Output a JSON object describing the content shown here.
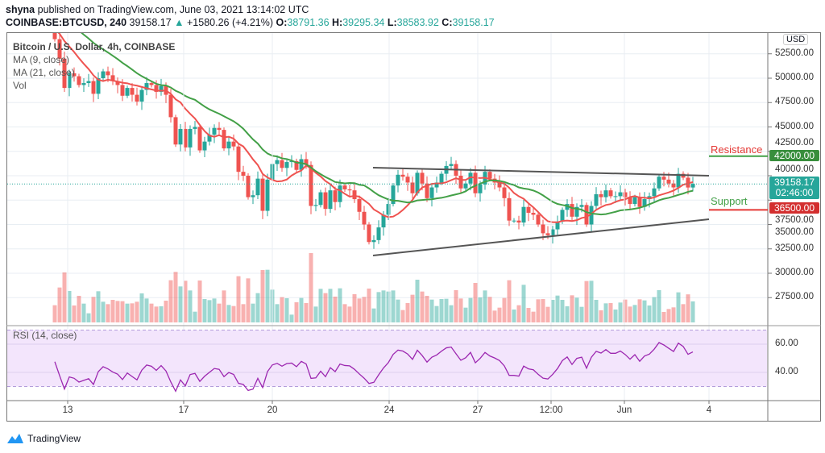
{
  "header": {
    "author": "shyna",
    "published": "published on TradingView.com, June 03, 2021 13:14:02 UTC",
    "symbol": "COINBASE:BTCUSD, 240",
    "last": "39158.17",
    "change": "+1580.26 (+4.21%)",
    "o_label": "O:",
    "o": "38791.36",
    "h_label": "H:",
    "h": "39295.34",
    "l_label": "L:",
    "l": "38583.92",
    "c_label": "C:",
    "c": "39158.17"
  },
  "legend": {
    "title": "Bitcoin / U.S. Dollar, 4h, COINBASE",
    "ma9": "MA (9, close)",
    "ma21": "MA (21, close)",
    "vol": "Vol",
    "rsi": "RSI (14, close)"
  },
  "annotations": {
    "resistance": "Resistance",
    "support": "Support",
    "resistance_value": "42000.00",
    "support_value": "36500.00",
    "price_box": "39158.17",
    "countdown": "02:46:00"
  },
  "colors": {
    "up": "#26a69a",
    "down": "#ef5350",
    "ma9": "#ef5350",
    "ma21": "#43a047",
    "rsi": "#9c27b0",
    "resistance_line": "#43a047",
    "support_line": "#e53935"
  },
  "chart_data": {
    "type": "candlestick",
    "currency": "USD",
    "price_ticks": [
      "52500.00",
      "50000.00",
      "47500.00",
      "45000.00",
      "42500.00",
      "40000.00",
      "37500.00",
      "35000.00",
      "32500.00",
      "30000.00",
      "27500.00"
    ],
    "rsi_ticks": [
      "60.00",
      "40.00"
    ],
    "time_ticks": [
      "13",
      "17",
      "20",
      "24",
      "27",
      "12:00",
      "Jun",
      "4"
    ],
    "ylim": [
      25500,
      55000
    ],
    "closes": [
      54000,
      52000,
      49000,
      50500,
      50200,
      49300,
      49500,
      49700,
      48400,
      50000,
      50700,
      50300,
      49700,
      49300,
      48200,
      49000,
      48300,
      47600,
      48800,
      49500,
      49300,
      48600,
      49200,
      48300,
      46000,
      43200,
      44800,
      42900,
      44800,
      45000,
      42600,
      43500,
      44200,
      44900,
      44700,
      42800,
      43500,
      43000,
      40400,
      40000,
      37800,
      38000,
      39700,
      36400,
      39600,
      41200,
      41600,
      40800,
      41400,
      41500,
      40600,
      41700,
      41100,
      36900,
      37000,
      38300,
      36600,
      38500,
      37300,
      39000,
      38600,
      38500,
      37600,
      36300,
      35000,
      33200,
      33400,
      34700,
      36000,
      37100,
      39000,
      40100,
      39900,
      39300,
      38200,
      40300,
      39200,
      37700,
      38800,
      39300,
      40200,
      41000,
      41200,
      40000,
      38700,
      39200,
      40300,
      38200,
      39100,
      40400,
      39700,
      39300,
      38800,
      37700,
      35400,
      35400,
      35200,
      36800,
      36200,
      36000,
      35000,
      34100,
      33900,
      34500,
      35300,
      36500,
      37100,
      35800,
      36800,
      37000,
      35000,
      36900,
      38100,
      37800,
      38500,
      37900,
      37900,
      38300,
      37800,
      37100,
      37800,
      36800,
      37600,
      37900,
      38700,
      39900,
      39600,
      39200,
      38800,
      40200,
      39800,
      38790,
      39158
    ],
    "resistance": 42000,
    "support": 36500,
    "series": [
      {
        "name": "MA (9, close)"
      },
      {
        "name": "MA (21, close)"
      },
      {
        "name": "RSI (14, close)"
      }
    ]
  },
  "footer": {
    "brand": "TradingView"
  }
}
